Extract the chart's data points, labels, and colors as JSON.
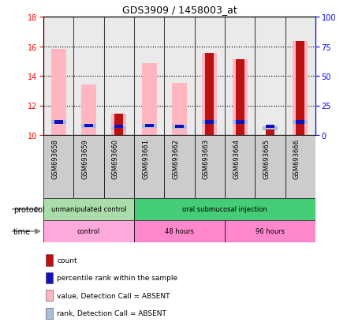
{
  "title": "GDS3909 / 1458003_at",
  "samples": [
    "GSM693658",
    "GSM693659",
    "GSM693660",
    "GSM693661",
    "GSM693662",
    "GSM693663",
    "GSM693664",
    "GSM693665",
    "GSM693666"
  ],
  "ylim_left": [
    10,
    18
  ],
  "ylim_right": [
    0,
    100
  ],
  "yticks_left": [
    10,
    12,
    14,
    16,
    18
  ],
  "yticks_right": [
    0,
    25,
    50,
    75,
    100
  ],
  "pink_bar_top": [
    15.82,
    13.4,
    11.45,
    14.85,
    13.5,
    15.55,
    15.1,
    10.0,
    16.35
  ],
  "lightblue_y": [
    10.88,
    10.62,
    10.45,
    10.62,
    10.58,
    10.88,
    10.88,
    10.45,
    10.88
  ],
  "red_bar_top": [
    10.0,
    10.0,
    11.45,
    10.0,
    10.0,
    15.55,
    15.1,
    10.35,
    16.35
  ],
  "blue_sq_y": [
    10.88,
    10.62,
    10.58,
    10.62,
    10.58,
    10.88,
    10.88,
    10.58,
    10.88
  ],
  "pink_bar_color": "#FFB6C1",
  "lightblue_color": "#AABCDD",
  "red_color": "#BB1111",
  "blue_color": "#1111BB",
  "protocol_groups": [
    {
      "label": "unmanipulated control",
      "start": 0,
      "end": 3,
      "color": "#AADDAA"
    },
    {
      "label": "oral submucosal injection",
      "start": 3,
      "end": 9,
      "color": "#44CC77"
    }
  ],
  "time_groups": [
    {
      "label": "control",
      "start": 0,
      "end": 3,
      "color": "#FFAADD"
    },
    {
      "label": "48 hours",
      "start": 3,
      "end": 6,
      "color": "#FF88CC"
    },
    {
      "label": "96 hours",
      "start": 6,
      "end": 9,
      "color": "#FF88CC"
    }
  ],
  "legend_items": [
    {
      "color": "#BB1111",
      "label": "count"
    },
    {
      "color": "#1111BB",
      "label": "percentile rank within the sample"
    },
    {
      "color": "#FFB6C1",
      "label": "value, Detection Call = ABSENT"
    },
    {
      "color": "#AABCDD",
      "label": "rank, Detection Call = ABSENT"
    }
  ],
  "sample_bg_color": "#CCCCCC",
  "figsize": [
    4.4,
    4.14
  ],
  "dpi": 100
}
